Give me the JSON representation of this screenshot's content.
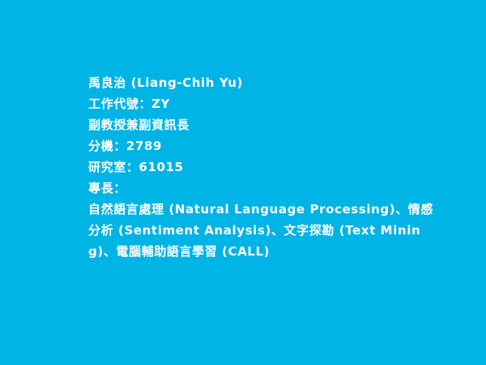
{
  "profile": {
    "name": "禹良治 (Liang-Chih Yu)",
    "work_code": "工作代號：ZY",
    "title": "副教授兼副資訊長",
    "extension": "分機：2789",
    "office": "研究室：61015",
    "specialty_label": "專長：",
    "specialty_text": "自然語言處理 (Natural Language Processing)、情感分析 (Sentiment Analysis)、文字探勘 (Text Mining)、電腦輔助語言學習 (CALL)"
  },
  "colors": {
    "background": "#00B4E6",
    "text": "#FFFFFF"
  }
}
